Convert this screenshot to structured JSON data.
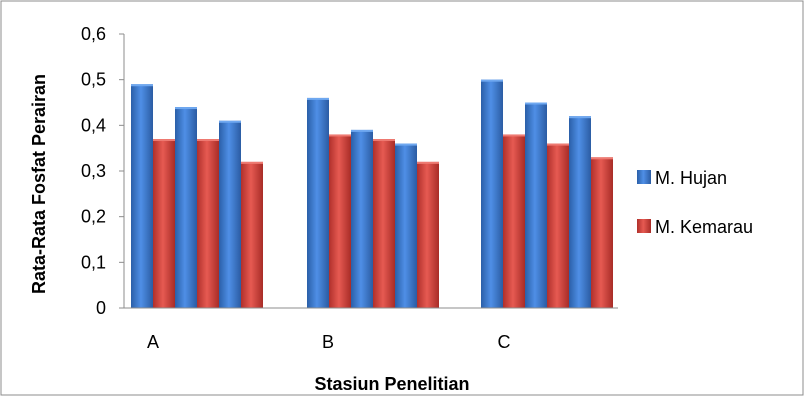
{
  "chart_data": {
    "type": "bar",
    "title": "",
    "xlabel": "Stasiun Penelitian",
    "ylabel": "Rata-Rata Fosfat Perairan",
    "ylim": [
      0,
      0.6
    ],
    "yticks": [
      "0",
      "0,1",
      "0,2",
      "0,3",
      "0,4",
      "0,5",
      "0,6"
    ],
    "grid": false,
    "legend_position": "right",
    "categories": [
      "A",
      "B",
      "C"
    ],
    "pattern": [
      "M. Hujan",
      "M. Kemarau",
      "M. Hujan",
      "M. Kemarau",
      "M. Hujan",
      "M. Kemarau"
    ],
    "series": [
      {
        "name": "M. Hujan",
        "color": "#3F7FD4",
        "values": [
          [
            0.49,
            0.44,
            0.41
          ],
          [
            0.46,
            0.39,
            0.36
          ],
          [
            0.5,
            0.45,
            0.42
          ]
        ]
      },
      {
        "name": "M. Kemarau",
        "color": "#D6413A",
        "values": [
          [
            0.37,
            0.37,
            0.32
          ],
          [
            0.38,
            0.37,
            0.32
          ],
          [
            0.38,
            0.36,
            0.33
          ]
        ]
      }
    ]
  }
}
